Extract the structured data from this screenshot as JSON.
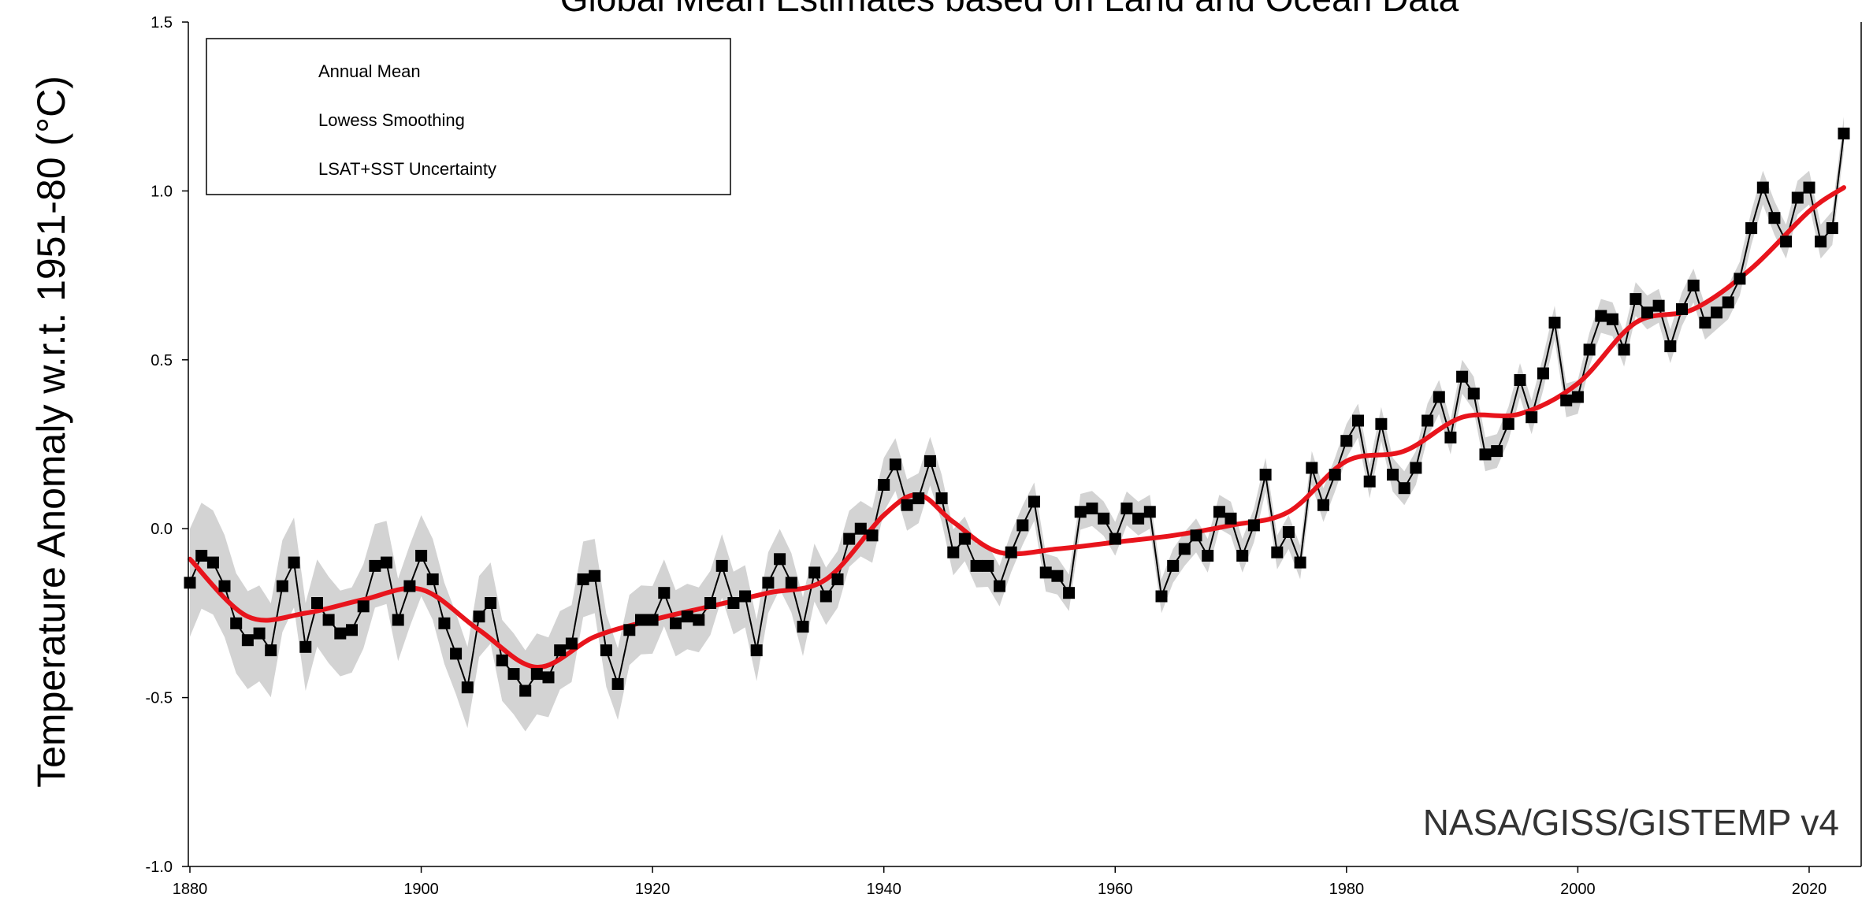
{
  "chart_data": {
    "type": "line",
    "title": "Global Mean Estimates based on Land and Ocean Data",
    "ylabel": "Temperature Anomaly w.r.t. 1951-80 (°C)",
    "xlabel": "",
    "credit": "NASA/GISS/GISTEMP v4",
    "xlim": [
      1880,
      2023
    ],
    "ylim": [
      -1.0,
      1.5
    ],
    "x_ticks": [
      1880,
      1900,
      1920,
      1940,
      1960,
      1980,
      2000,
      2020
    ],
    "x_tick_labels": [
      "1880",
      "1900",
      "1920",
      "1940",
      "1960",
      "1980",
      "2000",
      "2020"
    ],
    "y_ticks": [
      -1.0,
      -0.5,
      0.0,
      0.5,
      1.0,
      1.5
    ],
    "y_tick_labels": [
      "-1.0",
      "-0.5",
      "0.0",
      "0.5",
      "1.0",
      "1.5"
    ],
    "grid": false,
    "legend_position": "top-left",
    "legend": [
      "Annual Mean",
      "Lowess Smoothing",
      "LSAT+SST Uncertainty"
    ],
    "colors": {
      "annual": "#000000",
      "smooth": "#e8141c",
      "uncertainty": "#d3d3d3"
    },
    "series": [
      {
        "name": "Annual Mean",
        "x": [
          1880,
          1881,
          1882,
          1883,
          1884,
          1885,
          1886,
          1887,
          1888,
          1889,
          1890,
          1891,
          1892,
          1893,
          1894,
          1895,
          1896,
          1897,
          1898,
          1899,
          1900,
          1901,
          1902,
          1903,
          1904,
          1905,
          1906,
          1907,
          1908,
          1909,
          1910,
          1911,
          1912,
          1913,
          1914,
          1915,
          1916,
          1917,
          1918,
          1919,
          1920,
          1921,
          1922,
          1923,
          1924,
          1925,
          1926,
          1927,
          1928,
          1929,
          1930,
          1931,
          1932,
          1933,
          1934,
          1935,
          1936,
          1937,
          1938,
          1939,
          1940,
          1941,
          1942,
          1943,
          1944,
          1945,
          1946,
          1947,
          1948,
          1949,
          1950,
          1951,
          1952,
          1953,
          1954,
          1955,
          1956,
          1957,
          1958,
          1959,
          1960,
          1961,
          1962,
          1963,
          1964,
          1965,
          1966,
          1967,
          1968,
          1969,
          1970,
          1971,
          1972,
          1973,
          1974,
          1975,
          1976,
          1977,
          1978,
          1979,
          1980,
          1981,
          1982,
          1983,
          1984,
          1985,
          1986,
          1987,
          1988,
          1989,
          1990,
          1991,
          1992,
          1993,
          1994,
          1995,
          1996,
          1997,
          1998,
          1999,
          2000,
          2001,
          2002,
          2003,
          2004,
          2005,
          2006,
          2007,
          2008,
          2009,
          2010,
          2011,
          2012,
          2013,
          2014,
          2015,
          2016,
          2017,
          2018,
          2019,
          2020,
          2021,
          2022,
          2023
        ],
        "y": [
          -0.16,
          -0.08,
          -0.1,
          -0.17,
          -0.28,
          -0.33,
          -0.31,
          -0.36,
          -0.17,
          -0.1,
          -0.35,
          -0.22,
          -0.27,
          -0.31,
          -0.3,
          -0.23,
          -0.11,
          -0.1,
          -0.27,
          -0.17,
          -0.08,
          -0.15,
          -0.28,
          -0.37,
          -0.47,
          -0.26,
          -0.22,
          -0.39,
          -0.43,
          -0.48,
          -0.43,
          -0.44,
          -0.36,
          -0.34,
          -0.15,
          -0.14,
          -0.36,
          -0.46,
          -0.3,
          -0.27,
          -0.27,
          -0.19,
          -0.28,
          -0.26,
          -0.27,
          -0.22,
          -0.11,
          -0.22,
          -0.2,
          -0.36,
          -0.16,
          -0.09,
          -0.16,
          -0.29,
          -0.13,
          -0.2,
          -0.15,
          -0.03,
          0.0,
          -0.02,
          0.13,
          0.19,
          0.07,
          0.09,
          0.2,
          0.09,
          -0.07,
          -0.03,
          -0.11,
          -0.11,
          -0.17,
          -0.07,
          0.01,
          0.08,
          -0.13,
          -0.14,
          -0.19,
          0.05,
          0.06,
          0.03,
          -0.03,
          0.06,
          0.03,
          0.05,
          -0.2,
          -0.11,
          -0.06,
          -0.02,
          -0.08,
          0.05,
          0.03,
          -0.08,
          0.01,
          0.16,
          -0.07,
          -0.01,
          -0.1,
          0.18,
          0.07,
          0.16,
          0.26,
          0.32,
          0.14,
          0.31,
          0.16,
          0.12,
          0.18,
          0.32,
          0.39,
          0.27,
          0.45,
          0.4,
          0.22,
          0.23,
          0.31,
          0.44,
          0.33,
          0.46,
          0.61,
          0.38,
          0.39,
          0.53,
          0.63,
          0.62,
          0.53,
          0.68,
          0.64,
          0.66,
          0.54,
          0.65,
          0.72,
          0.61,
          0.64,
          0.67,
          0.74,
          0.89,
          1.01,
          0.92,
          0.85,
          0.98,
          1.01,
          0.85,
          0.89,
          1.17
        ]
      },
      {
        "name": "Lowess Smoothing",
        "x": [
          1880,
          1885,
          1890,
          1895,
          1900,
          1905,
          1910,
          1915,
          1920,
          1925,
          1930,
          1935,
          1940,
          1943,
          1946,
          1950,
          1955,
          1960,
          1965,
          1970,
          1975,
          1980,
          1985,
          1990,
          1995,
          2000,
          2005,
          2010,
          2015,
          2020,
          2023
        ],
        "y": [
          -0.09,
          -0.26,
          -0.25,
          -0.21,
          -0.18,
          -0.3,
          -0.41,
          -0.32,
          -0.27,
          -0.23,
          -0.19,
          -0.15,
          0.04,
          0.1,
          0.02,
          -0.07,
          -0.06,
          -0.04,
          -0.02,
          0.01,
          0.05,
          0.2,
          0.23,
          0.33,
          0.34,
          0.43,
          0.61,
          0.65,
          0.77,
          0.94,
          1.01
        ]
      },
      {
        "name": "LSAT+SST Uncertainty",
        "x": [
          1880,
          1890,
          1900,
          1910,
          1920,
          1930,
          1940,
          1950,
          1960,
          1970,
          1980,
          1990,
          2000,
          2010,
          2023
        ],
        "half_width": [
          0.16,
          0.13,
          0.12,
          0.12,
          0.1,
          0.09,
          0.08,
          0.06,
          0.05,
          0.05,
          0.05,
          0.05,
          0.05,
          0.05,
          0.05
        ]
      }
    ]
  }
}
